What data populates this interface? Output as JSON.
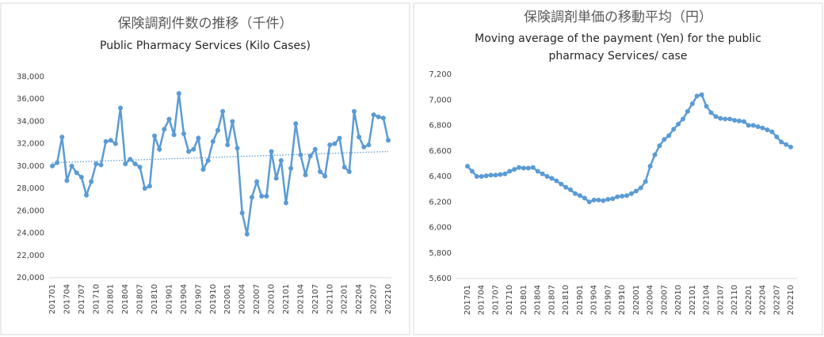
{
  "chart_data": [
    {
      "type": "line",
      "title": "保険調剤件数の推移（千件）",
      "subtitle": [
        "Public Pharmacy Services (Kilo Cases)"
      ],
      "categories": [
        "201701",
        null,
        null,
        "201704",
        null,
        null,
        "201707",
        null,
        null,
        "201710",
        null,
        null,
        "201801",
        null,
        null,
        "201804",
        null,
        null,
        "201807",
        null,
        null,
        "201810",
        null,
        null,
        "201901",
        null,
        null,
        "201904",
        null,
        null,
        "201907",
        null,
        null,
        "201910",
        null,
        null,
        "202001",
        null,
        null,
        "202004",
        null,
        null,
        "202007",
        null,
        null,
        "202010",
        null,
        null,
        "202101",
        null,
        null,
        "202104",
        null,
        null,
        "202107",
        null,
        null,
        "202110",
        null,
        null,
        "202201",
        null,
        null,
        "202204",
        null,
        null,
        "202207",
        null,
        null,
        "202210"
      ],
      "series": [
        {
          "color": "#5b9bd5",
          "values": [
            30000,
            30300,
            32600,
            28700,
            30000,
            29400,
            29000,
            27400,
            28600,
            30200,
            30100,
            32200,
            32300,
            32000,
            35200,
            30200,
            30600,
            30200,
            29900,
            28000,
            28200,
            32700,
            31500,
            33300,
            34200,
            32800,
            36500,
            32900,
            31300,
            31500,
            32500,
            29700,
            30500,
            32200,
            33200,
            34900,
            31900,
            34000,
            31600,
            25800,
            23900,
            27200,
            28600,
            27300,
            27300,
            31300,
            28900,
            30500,
            26700,
            29800,
            33800,
            31000,
            29200,
            30900,
            31500,
            29500,
            29100,
            31900,
            32000,
            32500,
            29900,
            29500,
            34900,
            32600,
            31700,
            31900,
            34600,
            34400,
            34300,
            32300
          ]
        }
      ],
      "trendline": {
        "color": "#5b9bd5",
        "start": 30300,
        "end": 31300
      },
      "ylim": [
        20000,
        38000
      ],
      "yticks": [
        {
          "value": 20000,
          "label": "20,000"
        },
        {
          "value": 22000,
          "label": "22,000"
        },
        {
          "value": 24000,
          "label": "24,000"
        },
        {
          "value": 26000,
          "label": "26,000"
        },
        {
          "value": 28000,
          "label": "28,000"
        },
        {
          "value": 30000,
          "label": "30,000"
        },
        {
          "value": 32000,
          "label": "32,000"
        },
        {
          "value": 34000,
          "label": "34,000"
        },
        {
          "value": 36000,
          "label": "36,000"
        },
        {
          "value": 38000,
          "label": "38,000"
        }
      ],
      "grid": false
    },
    {
      "type": "line",
      "title": "保険調剤単価の移動平均（円）",
      "subtitle": [
        "Moving average of the payment (Yen) for the public",
        "pharmacy Services/ case"
      ],
      "categories": [
        "201701",
        null,
        null,
        "201704",
        null,
        null,
        "201707",
        null,
        null,
        "201710",
        null,
        null,
        "201801",
        null,
        null,
        "201804",
        null,
        null,
        "201807",
        null,
        null,
        "201810",
        null,
        null,
        "201901",
        null,
        null,
        "201904",
        null,
        null,
        "201907",
        null,
        null,
        "201910",
        null,
        null,
        "202001",
        null,
        null,
        "202004",
        null,
        null,
        "202007",
        null,
        null,
        "202010",
        null,
        null,
        "202101",
        null,
        null,
        "202104",
        null,
        null,
        "202107",
        null,
        null,
        "202110",
        null,
        null,
        "202201",
        null,
        null,
        "202204",
        null,
        null,
        "202207",
        null,
        null,
        "202210"
      ],
      "series": [
        {
          "color": "#5b9bd5",
          "values": [
            6480,
            6440,
            6400,
            6400,
            6405,
            6410,
            6410,
            6415,
            6420,
            6440,
            6455,
            6470,
            6465,
            6465,
            6470,
            6440,
            6420,
            6400,
            6385,
            6365,
            6340,
            6315,
            6295,
            6265,
            6250,
            6230,
            6200,
            6215,
            6215,
            6210,
            6220,
            6225,
            6240,
            6245,
            6250,
            6265,
            6285,
            6310,
            6360,
            6480,
            6570,
            6640,
            6690,
            6720,
            6770,
            6810,
            6850,
            6910,
            6970,
            7030,
            7040,
            6950,
            6900,
            6870,
            6855,
            6850,
            6850,
            6840,
            6835,
            6830,
            6800,
            6800,
            6790,
            6780,
            6765,
            6750,
            6710,
            6670,
            6650,
            6630
          ]
        }
      ],
      "ylim": [
        5600,
        7200
      ],
      "yticks": [
        {
          "value": 5600,
          "label": "5,600"
        },
        {
          "value": 5800,
          "label": "5,800"
        },
        {
          "value": 6000,
          "label": "6,000"
        },
        {
          "value": 6200,
          "label": "6,200"
        },
        {
          "value": 6400,
          "label": "6,400"
        },
        {
          "value": 6600,
          "label": "6,600"
        },
        {
          "value": 6800,
          "label": "6,800"
        },
        {
          "value": 7000,
          "label": "7,000"
        },
        {
          "value": 7200,
          "label": "7,200"
        }
      ],
      "grid": false
    }
  ]
}
